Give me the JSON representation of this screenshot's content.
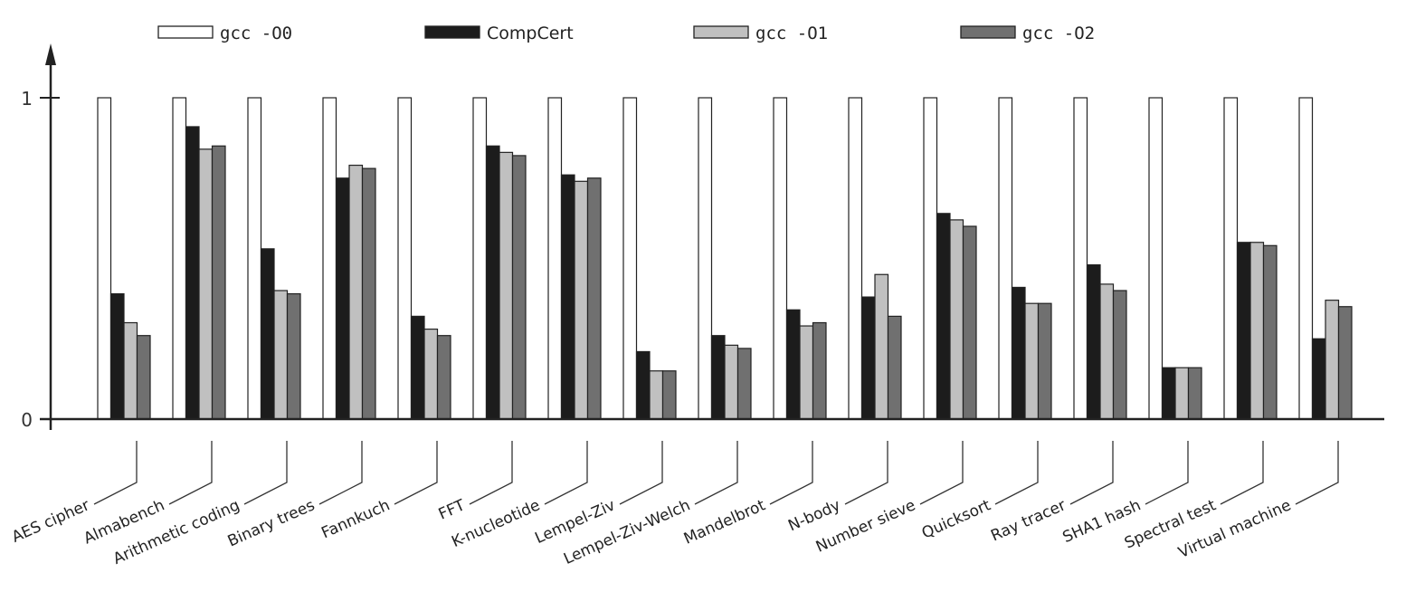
{
  "chart_data": {
    "type": "bar",
    "title": "",
    "xlabel": "",
    "ylabel": "",
    "ylim": [
      0,
      1
    ],
    "yticks": [
      "0",
      "1"
    ],
    "legend_placement": "top",
    "categories": [
      "AES cipher",
      "Almabench",
      "Arithmetic coding",
      "Binary trees",
      "Fannkuch",
      "FFT",
      "K-nucleotide",
      "Lempel-Ziv",
      "Lempel-Ziv-Welch",
      "Mandelbrot",
      "N-body",
      "Number sieve",
      "Quicksort",
      "Ray tracer",
      "SHA1 hash",
      "Spectral test",
      "Virtual machine"
    ],
    "series": [
      {
        "name": "gcc -O0",
        "color": "#ffffff",
        "values": [
          1,
          1,
          1,
          1,
          1,
          1,
          1,
          1,
          1,
          1,
          1,
          1,
          1,
          1,
          1,
          1,
          1
        ]
      },
      {
        "name": "CompCert",
        "color": "#1c1c1c",
        "values": [
          0.39,
          0.91,
          0.53,
          0.75,
          0.32,
          0.85,
          0.76,
          0.21,
          0.26,
          0.34,
          0.38,
          0.64,
          0.41,
          0.48,
          0.16,
          0.55,
          0.25
        ]
      },
      {
        "name": "gcc -O1",
        "color": "#c0c0c0",
        "values": [
          0.3,
          0.84,
          0.4,
          0.79,
          0.28,
          0.83,
          0.74,
          0.15,
          0.23,
          0.29,
          0.45,
          0.62,
          0.36,
          0.42,
          0.16,
          0.55,
          0.37
        ]
      },
      {
        "name": "gcc -O2",
        "color": "#707070",
        "values": [
          0.26,
          0.85,
          0.39,
          0.78,
          0.26,
          0.82,
          0.75,
          0.15,
          0.22,
          0.3,
          0.32,
          0.6,
          0.36,
          0.4,
          0.16,
          0.54,
          0.35
        ]
      }
    ]
  }
}
